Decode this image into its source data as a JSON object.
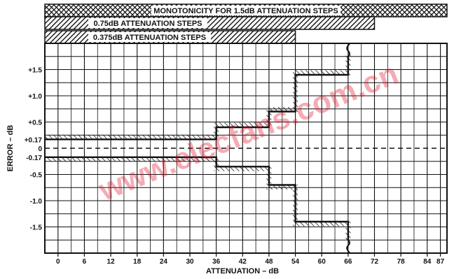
{
  "chart_data": {
    "type": "line",
    "xlabel": "ATTENUATION – dB",
    "ylabel": "ERROR – dB",
    "x_ticks": [
      0,
      6,
      12,
      18,
      24,
      30,
      36,
      42,
      48,
      54,
      60,
      66,
      72,
      78,
      84,
      87
    ],
    "x_tick_labels": [
      "0",
      "6",
      "12",
      "18",
      "24",
      "30",
      "36",
      "42",
      "48",
      "54",
      "60",
      "66",
      "72",
      "78",
      "84",
      "87"
    ],
    "y_ticks": [
      1.5,
      1.0,
      0.5,
      0.17,
      0,
      -0.17,
      -0.5,
      -1.0,
      -1.5
    ],
    "y_tick_labels": [
      "+1.5",
      "+1.0",
      "+0.5",
      "+0.17",
      "0",
      "-0.17",
      "-0.5",
      "-1.0",
      "-1.5"
    ],
    "xlim": [
      -3,
      88.5
    ],
    "ylim": [
      -2.0,
      2.0
    ],
    "grid": true,
    "bands": [
      {
        "label": "MONOTONICITY FOR 1.5dB ATTENUATION STEPS",
        "x_end": 88.5
      },
      {
        "label": "0.75dB ATTENUATION STEPS",
        "x_end": 72
      },
      {
        "label": "0.375dB ATTENUATION STEPS",
        "x_end": 54
      }
    ],
    "series": [
      {
        "x": [
          -3,
          36,
          36,
          48,
          48,
          54,
          54,
          66,
          66
        ],
        "y": [
          0.17,
          0.17,
          0.4,
          0.4,
          0.7,
          0.7,
          1.4,
          1.4,
          1.75
        ]
      },
      {
        "x": [
          -3,
          36,
          36,
          48,
          48,
          54,
          54,
          66,
          66
        ],
        "y": [
          -0.17,
          -0.17,
          -0.35,
          -0.35,
          -0.7,
          -0.7,
          -1.4,
          -1.4,
          -1.75
        ]
      },
      {
        "x": [
          -3,
          88.5
        ],
        "y": [
          0,
          0
        ]
      }
    ],
    "watermark": "www.elecfans.com.cn"
  }
}
